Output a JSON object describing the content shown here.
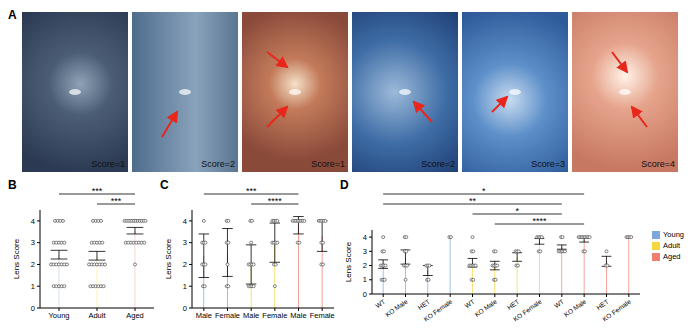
{
  "panel_labels": [
    "A",
    "B",
    "C",
    "D"
  ],
  "images": [
    "Score=1",
    "Score=2",
    "Score=1",
    "Score=2",
    "Score=3",
    "Score=4"
  ],
  "chart_data": [
    {
      "type": "bar",
      "categories": [
        "Young",
        "Adult",
        "Aged"
      ],
      "values": [
        2.45,
        2.4,
        3.55
      ],
      "errors": [
        0.2,
        0.2,
        0.15
      ],
      "colors": [
        "#7ba7dc",
        "#f6d740",
        "#f28072"
      ],
      "points": [
        [
          1,
          1,
          1,
          1,
          1,
          2,
          2,
          2,
          2,
          2,
          2,
          2,
          3,
          3,
          3,
          3,
          3,
          4,
          4,
          4,
          4
        ],
        [
          1,
          1,
          1,
          1,
          1,
          1,
          2,
          2,
          2,
          2,
          2,
          2,
          2,
          3,
          3,
          3,
          3,
          3,
          4,
          4,
          4,
          4
        ],
        [
          2,
          3,
          3,
          3,
          3,
          3,
          3,
          3,
          3,
          4,
          4,
          4,
          4,
          4,
          4,
          4,
          4,
          4,
          4,
          4,
          4
        ]
      ],
      "y_label": "Lens Score",
      "ylim": [
        0,
        4.5
      ],
      "yticks": [
        0,
        1,
        2,
        3,
        4
      ],
      "annotations": [
        {
          "from": 1,
          "to": 2,
          "text": "***"
        },
        {
          "from": 0,
          "to": 2,
          "text": "***"
        }
      ]
    },
    {
      "type": "bar",
      "categories": [
        "Male",
        "Female",
        "Male",
        "Female",
        "Male",
        "Female"
      ],
      "values": [
        2.4,
        2.55,
        2.0,
        3.0,
        3.8,
        3.3
      ],
      "errors": [
        1.0,
        1.1,
        0.9,
        0.9,
        0.4,
        0.7
      ],
      "colors": [
        "#7ba7dc",
        "#7ba7dc",
        "#f6d740",
        "#f6d740",
        "#f28072",
        "#f28072"
      ],
      "points": [
        [
          1,
          1,
          2,
          2,
          2,
          3,
          3,
          3,
          4
        ],
        [
          1,
          1,
          2,
          3,
          3,
          4,
          4
        ],
        [
          1,
          1,
          1,
          1,
          2,
          2,
          2,
          2,
          3,
          4,
          4
        ],
        [
          1,
          2,
          2,
          3,
          3,
          3,
          3,
          4,
          4,
          4,
          4
        ],
        [
          3,
          3,
          4,
          4,
          4,
          4,
          4,
          4,
          4,
          4
        ],
        [
          2,
          2,
          3,
          3,
          4,
          4,
          4,
          4,
          4
        ]
      ],
      "y_label": "Lens Score",
      "ylim": [
        0,
        4.5
      ],
      "yticks": [
        0,
        1,
        2,
        3,
        4
      ],
      "annotations": [
        {
          "from": 2,
          "to": 4,
          "text": "****"
        },
        {
          "from": 0,
          "to": 4,
          "text": "***"
        }
      ]
    },
    {
      "type": "bar",
      "categories": [
        "WT",
        "KO Male",
        "HET",
        "KO Female",
        "WT",
        "KO Male",
        "HET",
        "KO Female",
        "WT",
        "KO Male",
        "HET",
        "KO Female"
      ],
      "series": [
        {
          "name": "Young",
          "color": "#7ba7dc",
          "values": [
            2.1,
            2.6,
            1.65,
            4,
            null,
            null,
            null,
            null,
            null,
            null,
            null,
            null
          ],
          "errors": [
            0.3,
            0.5,
            0.35,
            0,
            null,
            null,
            null,
            null,
            null,
            null,
            null,
            null
          ],
          "points": [
            [
              1,
              1,
              1,
              2,
              2,
              2,
              2,
              3,
              3,
              4
            ],
            [
              1,
              2,
              2,
              2,
              3,
              3,
              4,
              4
            ],
            [
              1,
              1,
              2,
              2,
              2
            ],
            [
              4,
              4
            ],
            null,
            null,
            null,
            null,
            null,
            null,
            null,
            null
          ]
        },
        {
          "name": "Adult",
          "color": "#f6d740",
          "values": [
            null,
            null,
            null,
            null,
            2.2,
            2.0,
            2.6,
            3.7,
            null,
            null,
            null,
            null
          ],
          "errors": [
            null,
            null,
            null,
            null,
            0.3,
            0.3,
            0.3,
            0.2,
            null,
            null,
            null,
            null
          ],
          "points": [
            null,
            null,
            null,
            null,
            [
              1,
              1,
              2,
              2,
              2,
              2,
              2,
              3,
              3,
              4
            ],
            [
              1,
              1,
              2,
              2,
              2,
              2,
              3,
              3
            ],
            [
              2,
              2,
              3,
              3,
              3
            ],
            [
              3,
              3,
              4,
              4,
              4,
              4
            ],
            null,
            null,
            null,
            null
          ]
        },
        {
          "name": "Aged",
          "color": "#f28072",
          "values": [
            null,
            null,
            null,
            null,
            null,
            null,
            null,
            null,
            3.3,
            3.8,
            2.3,
            4
          ],
          "errors": [
            null,
            null,
            null,
            null,
            null,
            null,
            null,
            null,
            0.15,
            0.15,
            0.35,
            0
          ],
          "points": [
            null,
            null,
            null,
            null,
            null,
            null,
            null,
            null,
            [
              3,
              3,
              3,
              3,
              3,
              4,
              4
            ],
            [
              3,
              3,
              4,
              4,
              4,
              4,
              4,
              4,
              4,
              4
            ],
            [
              2,
              2,
              3
            ],
            [
              4,
              4,
              4,
              4
            ]
          ]
        }
      ],
      "legend": "top-right",
      "y_label": "Lens Score",
      "ylim": [
        0,
        4.5
      ],
      "yticks": [
        0,
        1,
        2,
        3,
        4
      ],
      "annotations": [
        {
          "from": 5,
          "to": 9,
          "text": "****"
        },
        {
          "from": 4,
          "to": 8,
          "text": "*"
        },
        {
          "from": 0,
          "to": 8,
          "text": "**"
        },
        {
          "from": 0,
          "to": 9,
          "text": "*"
        }
      ]
    }
  ]
}
